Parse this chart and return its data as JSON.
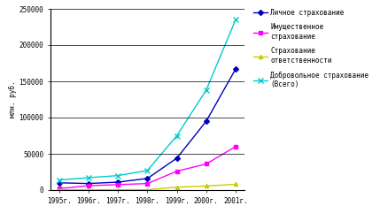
{
  "years": [
    "1995г.",
    "1996г.",
    "1997г.",
    "1998г.",
    "1999г.",
    "2000г.",
    "2001г."
  ],
  "personal": [
    10000,
    9000,
    11000,
    16000,
    44000,
    95000,
    167000
  ],
  "property": [
    2000,
    6000,
    7500,
    9000,
    26000,
    36000,
    60000
  ],
  "liability": [
    500,
    500,
    500,
    500,
    4000,
    5500,
    8000
  ],
  "voluntary_total": [
    14000,
    17000,
    20000,
    27000,
    75000,
    138000,
    235000
  ],
  "personal_color": "#0000bb",
  "property_color": "#ff00ff",
  "liability_color": "#cccc00",
  "voluntary_color": "#00cccc",
  "ylabel": "млн. руб.",
  "ylim": [
    0,
    250000
  ],
  "yticks": [
    0,
    50000,
    100000,
    150000,
    200000,
    250000
  ],
  "legend_personal": "Личное страхование",
  "legend_property": "Имущественное\nстрахование",
  "legend_liability": "Страхование\nответственности",
  "legend_voluntary": "Добровольное страхование\n(Всего)",
  "bg_color": "#ffffff",
  "grid_color": "#000000"
}
